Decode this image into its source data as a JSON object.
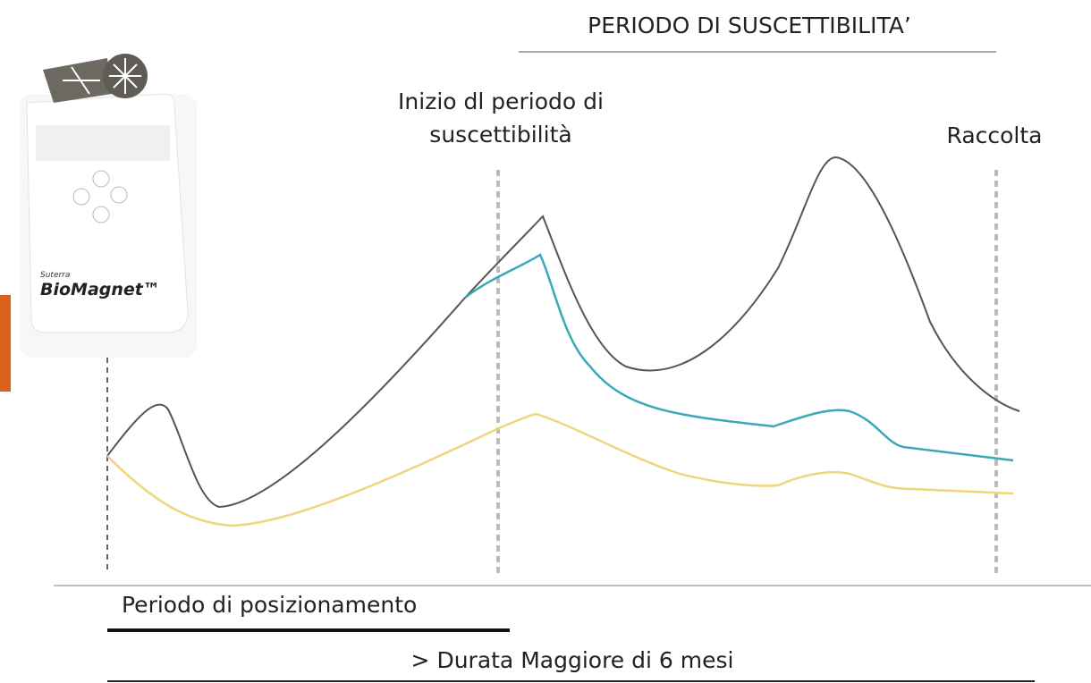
{
  "header": {
    "title": "PERIODO DI SUSCETTIBILITA’"
  },
  "markers": {
    "start_line1": "Inizio dl periodo di",
    "start_line2": "suscettibilità",
    "end": "Raccolta"
  },
  "product": {
    "brand": "Suterra",
    "name": "BioMagnet™"
  },
  "footer": {
    "placement": "Periodo di posizionamento",
    "duration": "> Durata Maggiore di 6 mesi"
  }
}
